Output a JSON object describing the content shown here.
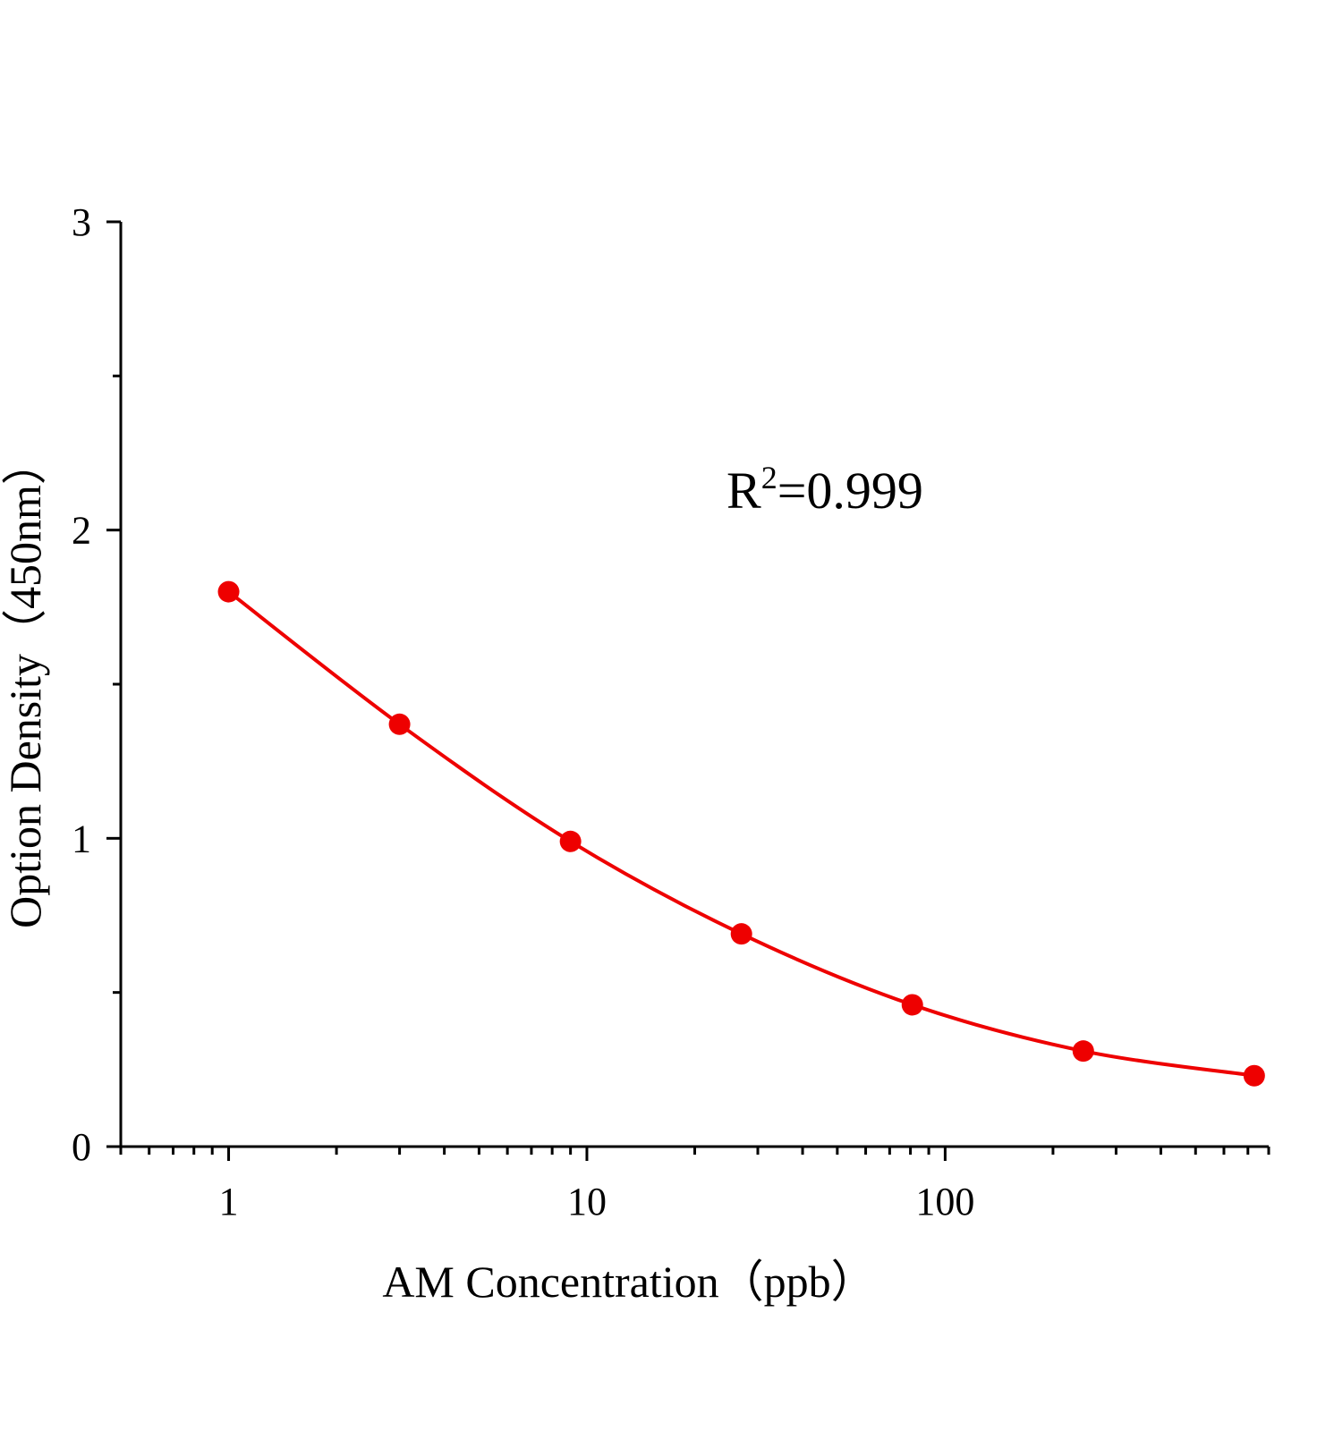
{
  "chart_data": {
    "type": "line",
    "title": "",
    "xlabel": "AM Concentration（ppb）",
    "ylabel": "Option Density（450nm）",
    "x_scale": "log",
    "xlim": [
      0.5,
      800
    ],
    "ylim": [
      0,
      3
    ],
    "x_ticks": [
      1,
      10,
      100
    ],
    "x_tick_labels": [
      "1",
      "10",
      "100"
    ],
    "y_ticks": [
      0,
      1,
      2,
      3
    ],
    "y_tick_labels": [
      "0",
      "1",
      "2",
      "3"
    ],
    "grid": false,
    "legend": "none",
    "series": [
      {
        "x": [
          1,
          3,
          9,
          27,
          81,
          243,
          729
        ],
        "y": [
          1.8,
          1.37,
          0.99,
          0.69,
          0.46,
          0.31,
          0.23
        ],
        "color": "#ee0000",
        "marker": "circle",
        "curve": "smooth"
      }
    ],
    "annotation": {
      "prefix": "R",
      "sup": "2",
      "suffix": "=0.999"
    }
  }
}
